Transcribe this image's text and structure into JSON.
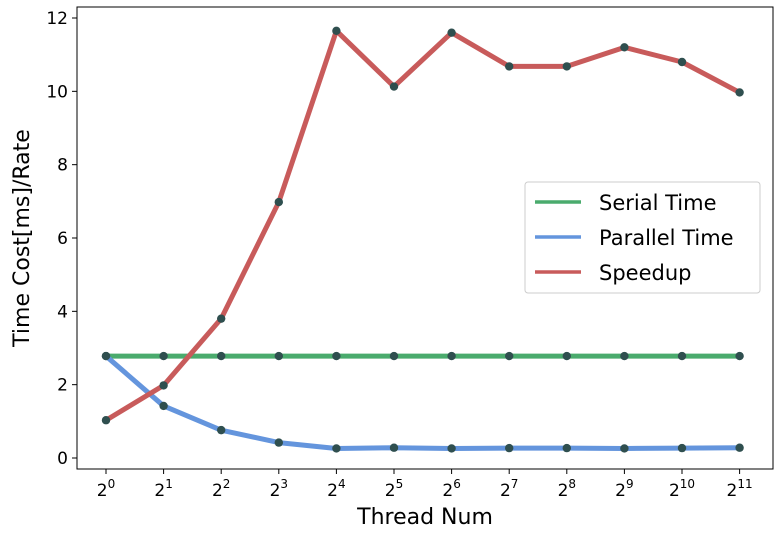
{
  "chart_data": {
    "type": "line",
    "xlabel": "Thread Num",
    "ylabel": "Time Cost[ms]/Rate",
    "categories": [
      {
        "base": "2",
        "exp": "0"
      },
      {
        "base": "2",
        "exp": "1"
      },
      {
        "base": "2",
        "exp": "2"
      },
      {
        "base": "2",
        "exp": "3"
      },
      {
        "base": "2",
        "exp": "4"
      },
      {
        "base": "2",
        "exp": "5"
      },
      {
        "base": "2",
        "exp": "6"
      },
      {
        "base": "2",
        "exp": "7"
      },
      {
        "base": "2",
        "exp": "8"
      },
      {
        "base": "2",
        "exp": "9"
      },
      {
        "base": "2",
        "exp": "10"
      },
      {
        "base": "2",
        "exp": "11"
      }
    ],
    "ylim": [
      -0.3,
      12.3
    ],
    "yticks": [
      0,
      2,
      4,
      6,
      8,
      10,
      12
    ],
    "grid": false,
    "legend_position": "center-right",
    "marker_color": "#2f4f4f",
    "series": [
      {
        "name": "Serial Time",
        "color": "#4aab6d",
        "values": [
          2.78,
          2.78,
          2.78,
          2.78,
          2.78,
          2.78,
          2.78,
          2.78,
          2.78,
          2.78,
          2.78,
          2.78
        ]
      },
      {
        "name": "Parallel Time",
        "color": "#6495dd",
        "values": [
          2.78,
          1.42,
          0.76,
          0.42,
          0.26,
          0.28,
          0.26,
          0.27,
          0.27,
          0.26,
          0.27,
          0.28
        ]
      },
      {
        "name": "Speedup",
        "color": "#c85b5b",
        "values": [
          1.03,
          1.98,
          3.8,
          6.98,
          11.65,
          10.13,
          11.6,
          10.68,
          10.68,
          11.2,
          10.8,
          9.97
        ]
      }
    ]
  }
}
